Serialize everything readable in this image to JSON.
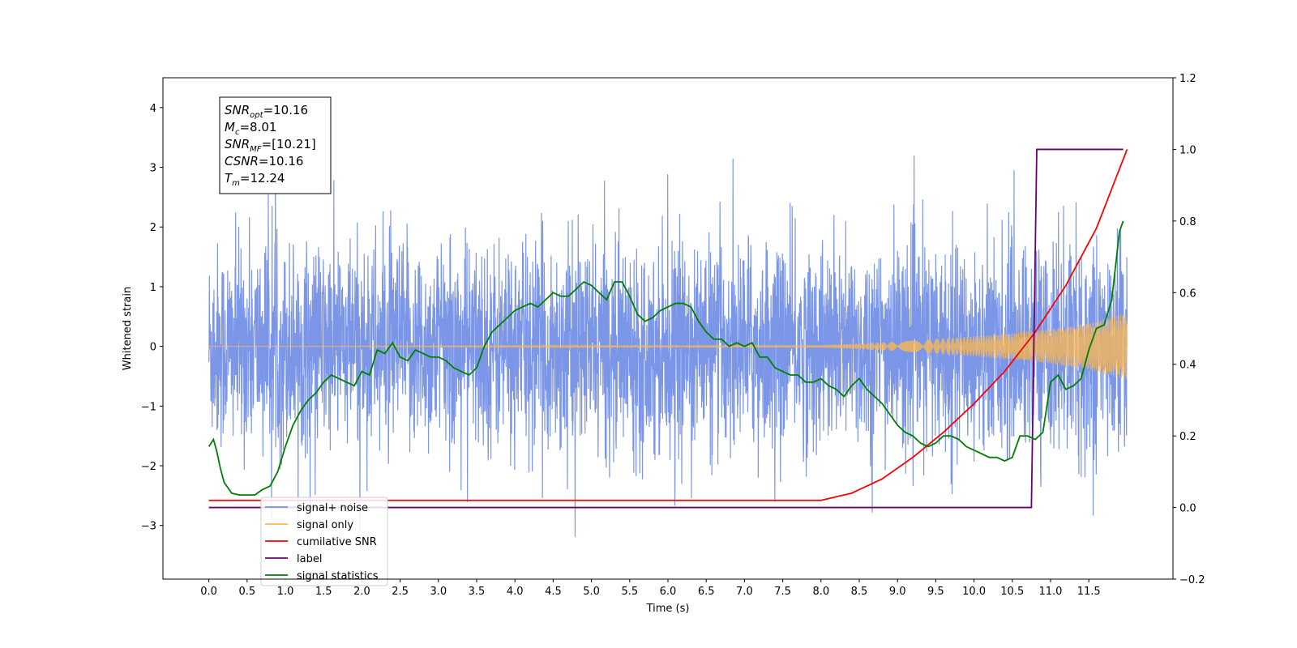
{
  "chart_data": {
    "type": "line",
    "xlabel": "Time (s)",
    "ylabel": "Whitened strain",
    "xlim": [
      -0.6,
      12.6
    ],
    "ylim": [
      -3.9,
      4.5
    ],
    "y2lim": [
      -0.2,
      1.2
    ],
    "x_ticks": [
      0.0,
      0.5,
      1.0,
      1.5,
      2.0,
      2.5,
      3.0,
      3.5,
      4.0,
      4.5,
      5.0,
      5.5,
      6.0,
      6.5,
      7.0,
      7.5,
      8.0,
      8.5,
      9.0,
      9.5,
      10.0,
      10.5,
      11.0,
      11.5
    ],
    "x_tick_labels": [
      "0.0",
      "0.5",
      "1.0",
      "1.5",
      "2.0",
      "2.5",
      "3.0",
      "3.5",
      "4.0",
      "4.5",
      "5.0",
      "5.5",
      "6.0",
      "6.5",
      "7.0",
      "7.5",
      "8.0",
      "8.5",
      "9.0",
      "9.5",
      "10.0",
      "10.5",
      "11.0",
      "11.5"
    ],
    "y_ticks": [
      -3,
      -2,
      -1,
      0,
      1,
      2,
      3,
      4
    ],
    "y_tick_labels": [
      "−3",
      "−2",
      "−1",
      "0",
      "1",
      "2",
      "3",
      "4"
    ],
    "y2_ticks": [
      -0.2,
      0.0,
      0.2,
      0.4,
      0.6,
      0.8,
      1.0,
      1.2
    ],
    "y2_tick_labels": [
      "−0.2",
      "0.0",
      "0.2",
      "0.4",
      "0.6",
      "0.8",
      "1.0",
      "1.2"
    ],
    "grid": false,
    "legend_position": "lower-left",
    "annotation": [
      {
        "base": "SNR",
        "sub": "opt",
        "value": "=10.16"
      },
      {
        "base": "M",
        "sub": "c",
        "value": "=8.01"
      },
      {
        "base": "SNR",
        "sub": "MF",
        "value": "=[10.21]"
      },
      {
        "base": "CSNR",
        "sub": "",
        "value": "=10.16"
      },
      {
        "base": "T",
        "sub": "m",
        "value": "=12.24"
      }
    ],
    "series": [
      {
        "name": "signal+ noise",
        "color": "#7590e6",
        "axis": "left",
        "style": "noise band",
        "x_range": [
          0.0,
          12.0
        ],
        "approx_envelope": {
          "typical_upper": 2.1,
          "typical_lower": -2.2,
          "max": 4.1,
          "min": -3.5
        }
      },
      {
        "name": "signal only",
        "color": "#ffb84d",
        "axis": "left",
        "style": "chirp",
        "x_range": [
          0.0,
          12.0
        ],
        "amplitude": {
          "x": [
            0.0,
            8.0,
            9.0,
            10.0,
            10.5,
            11.0,
            11.5,
            12.0
          ],
          "y": [
            0.0,
            0.02,
            0.08,
            0.17,
            0.22,
            0.29,
            0.39,
            0.57
          ]
        }
      },
      {
        "name": "cumilative SNR",
        "color": "#ff0000",
        "axis": "right",
        "x": [
          0.0,
          8.0,
          8.4,
          8.8,
          9.2,
          9.6,
          10.0,
          10.4,
          10.8,
          11.2,
          11.6,
          12.0
        ],
        "y": [
          0.02,
          0.02,
          0.04,
          0.08,
          0.14,
          0.21,
          0.29,
          0.38,
          0.49,
          0.62,
          0.78,
          1.0
        ]
      },
      {
        "name": "label",
        "color": "#6e006e",
        "axis": "right",
        "x": [
          0.0,
          10.75,
          10.82,
          11.95
        ],
        "y": [
          0.0,
          0.0,
          1.0,
          1.0
        ]
      },
      {
        "name": "signal statistics",
        "color": "#007f00",
        "axis": "right",
        "x": [
          0.0,
          0.06,
          0.1,
          0.15,
          0.2,
          0.3,
          0.4,
          0.5,
          0.6,
          0.7,
          0.8,
          0.9,
          1.0,
          1.1,
          1.2,
          1.3,
          1.4,
          1.5,
          1.6,
          1.7,
          1.8,
          1.9,
          2.0,
          2.1,
          2.2,
          2.3,
          2.4,
          2.5,
          2.6,
          2.7,
          2.8,
          2.9,
          3.0,
          3.1,
          3.2,
          3.3,
          3.4,
          3.5,
          3.6,
          3.7,
          3.8,
          3.9,
          4.0,
          4.1,
          4.2,
          4.3,
          4.4,
          4.5,
          4.6,
          4.7,
          4.8,
          4.9,
          5.0,
          5.1,
          5.2,
          5.3,
          5.4,
          5.5,
          5.6,
          5.7,
          5.8,
          5.9,
          6.0,
          6.1,
          6.2,
          6.3,
          6.4,
          6.5,
          6.6,
          6.7,
          6.8,
          6.9,
          7.0,
          7.1,
          7.2,
          7.3,
          7.4,
          7.5,
          7.6,
          7.7,
          7.8,
          7.9,
          8.0,
          8.1,
          8.2,
          8.3,
          8.4,
          8.5,
          8.6,
          8.7,
          8.8,
          8.9,
          9.0,
          9.1,
          9.2,
          9.3,
          9.4,
          9.5,
          9.6,
          9.7,
          9.8,
          9.9,
          10.0,
          10.1,
          10.2,
          10.3,
          10.4,
          10.5,
          10.6,
          10.7,
          10.8,
          10.9,
          11.0,
          11.1,
          11.2,
          11.3,
          11.4,
          11.5,
          11.6,
          11.7,
          11.8,
          11.9,
          11.95
        ],
        "y": [
          0.17,
          0.19,
          0.16,
          0.11,
          0.07,
          0.04,
          0.035,
          0.035,
          0.035,
          0.05,
          0.06,
          0.1,
          0.17,
          0.23,
          0.27,
          0.3,
          0.32,
          0.35,
          0.37,
          0.36,
          0.35,
          0.34,
          0.38,
          0.37,
          0.44,
          0.43,
          0.46,
          0.42,
          0.41,
          0.44,
          0.43,
          0.42,
          0.42,
          0.41,
          0.39,
          0.38,
          0.37,
          0.39,
          0.45,
          0.49,
          0.51,
          0.53,
          0.55,
          0.56,
          0.57,
          0.56,
          0.58,
          0.6,
          0.59,
          0.59,
          0.61,
          0.63,
          0.62,
          0.6,
          0.58,
          0.63,
          0.63,
          0.59,
          0.54,
          0.52,
          0.53,
          0.55,
          0.56,
          0.57,
          0.57,
          0.56,
          0.52,
          0.49,
          0.47,
          0.47,
          0.45,
          0.46,
          0.45,
          0.46,
          0.42,
          0.42,
          0.39,
          0.38,
          0.37,
          0.37,
          0.35,
          0.35,
          0.36,
          0.34,
          0.33,
          0.31,
          0.34,
          0.36,
          0.33,
          0.31,
          0.29,
          0.26,
          0.23,
          0.21,
          0.2,
          0.18,
          0.17,
          0.18,
          0.2,
          0.2,
          0.19,
          0.17,
          0.16,
          0.15,
          0.14,
          0.14,
          0.13,
          0.14,
          0.2,
          0.2,
          0.19,
          0.21,
          0.35,
          0.37,
          0.33,
          0.34,
          0.36,
          0.44,
          0.5,
          0.51,
          0.58,
          0.77,
          0.8
        ]
      }
    ]
  }
}
